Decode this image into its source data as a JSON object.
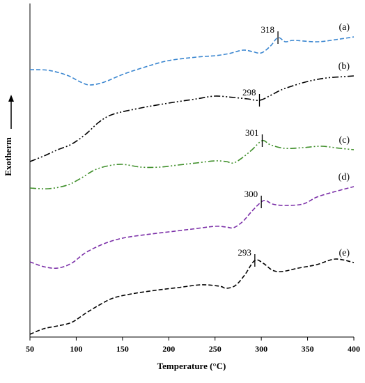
{
  "chart_data": {
    "type": "line",
    "xlabel": "Temperature (°C)",
    "ylabel": "Exotherm",
    "xlim": [
      50,
      400
    ],
    "x_ticks": [
      50,
      100,
      150,
      200,
      250,
      300,
      350,
      400
    ],
    "y_ticks_shown": false,
    "y_units": "arbitrary (stacked curves)",
    "grid": false,
    "series": [
      {
        "name": "(a)",
        "color": "#3a86d0",
        "dash": "dashed",
        "peak": {
          "x": 318,
          "label": "318"
        },
        "points": [
          [
            50,
            100
          ],
          [
            70,
            101
          ],
          [
            90,
            108
          ],
          [
            105,
            118
          ],
          [
            115,
            122
          ],
          [
            130,
            118
          ],
          [
            150,
            107
          ],
          [
            175,
            96
          ],
          [
            200,
            87
          ],
          [
            230,
            82
          ],
          [
            250,
            80
          ],
          [
            265,
            77
          ],
          [
            280,
            72
          ],
          [
            290,
            74
          ],
          [
            300,
            76
          ],
          [
            310,
            66
          ],
          [
            318,
            54
          ],
          [
            326,
            60
          ],
          [
            335,
            58
          ],
          [
            360,
            60
          ],
          [
            380,
            57
          ],
          [
            400,
            53
          ]
        ]
      },
      {
        "name": "(b)",
        "color": "#000000",
        "dash": "dash-dot-dot",
        "peak": {
          "x": 298,
          "label": "298"
        },
        "points": [
          [
            50,
            232
          ],
          [
            65,
            224
          ],
          [
            80,
            215
          ],
          [
            95,
            207
          ],
          [
            110,
            193
          ],
          [
            125,
            175
          ],
          [
            140,
            164
          ],
          [
            170,
            155
          ],
          [
            200,
            148
          ],
          [
            230,
            142
          ],
          [
            250,
            138
          ],
          [
            270,
            140
          ],
          [
            285,
            142
          ],
          [
            298,
            144
          ],
          [
            310,
            137
          ],
          [
            320,
            130
          ],
          [
            330,
            125
          ],
          [
            350,
            117
          ],
          [
            370,
            112
          ],
          [
            390,
            110
          ],
          [
            400,
            109
          ]
        ]
      },
      {
        "name": "(c)",
        "color": "#3f8f2a",
        "dash": "dash-dot-dot",
        "peak": {
          "x": 301,
          "label": "301"
        },
        "points": [
          [
            50,
            270
          ],
          [
            70,
            271
          ],
          [
            90,
            266
          ],
          [
            105,
            256
          ],
          [
            120,
            244
          ],
          [
            135,
            238
          ],
          [
            150,
            236
          ],
          [
            170,
            240
          ],
          [
            190,
            240
          ],
          [
            210,
            237
          ],
          [
            230,
            234
          ],
          [
            250,
            231
          ],
          [
            262,
            232
          ],
          [
            270,
            234
          ],
          [
            280,
            226
          ],
          [
            290,
            215
          ],
          [
            301,
            202
          ],
          [
            310,
            208
          ],
          [
            325,
            213
          ],
          [
            345,
            212
          ],
          [
            365,
            210
          ],
          [
            385,
            213
          ],
          [
            400,
            215
          ]
        ]
      },
      {
        "name": "(d)",
        "color": "#7b2fa8",
        "dash": "dashed",
        "peak": {
          "x": 300,
          "label": "300"
        },
        "points": [
          [
            50,
            376
          ],
          [
            65,
            383
          ],
          [
            80,
            385
          ],
          [
            95,
            378
          ],
          [
            110,
            363
          ],
          [
            130,
            350
          ],
          [
            150,
            342
          ],
          [
            175,
            337
          ],
          [
            200,
            333
          ],
          [
            225,
            329
          ],
          [
            250,
            325
          ],
          [
            262,
            326
          ],
          [
            270,
            327
          ],
          [
            280,
            318
          ],
          [
            290,
            303
          ],
          [
            300,
            290
          ],
          [
            305,
            288
          ],
          [
            312,
            293
          ],
          [
            325,
            295
          ],
          [
            345,
            293
          ],
          [
            360,
            283
          ],
          [
            380,
            275
          ],
          [
            400,
            268
          ]
        ]
      },
      {
        "name": "(e)",
        "color": "#000000",
        "dash": "dashed",
        "peak": {
          "x": 293,
          "label": "293"
        },
        "points": [
          [
            50,
            480
          ],
          [
            65,
            472
          ],
          [
            80,
            468
          ],
          [
            95,
            463
          ],
          [
            110,
            450
          ],
          [
            125,
            438
          ],
          [
            140,
            428
          ],
          [
            160,
            422
          ],
          [
            185,
            417
          ],
          [
            210,
            413
          ],
          [
            235,
            409
          ],
          [
            255,
            411
          ],
          [
            262,
            414
          ],
          [
            272,
            410
          ],
          [
            282,
            395
          ],
          [
            293,
            374
          ],
          [
            302,
            378
          ],
          [
            312,
            388
          ],
          [
            322,
            390
          ],
          [
            340,
            385
          ],
          [
            360,
            380
          ],
          [
            380,
            372
          ],
          [
            400,
            377
          ]
        ]
      }
    ]
  }
}
